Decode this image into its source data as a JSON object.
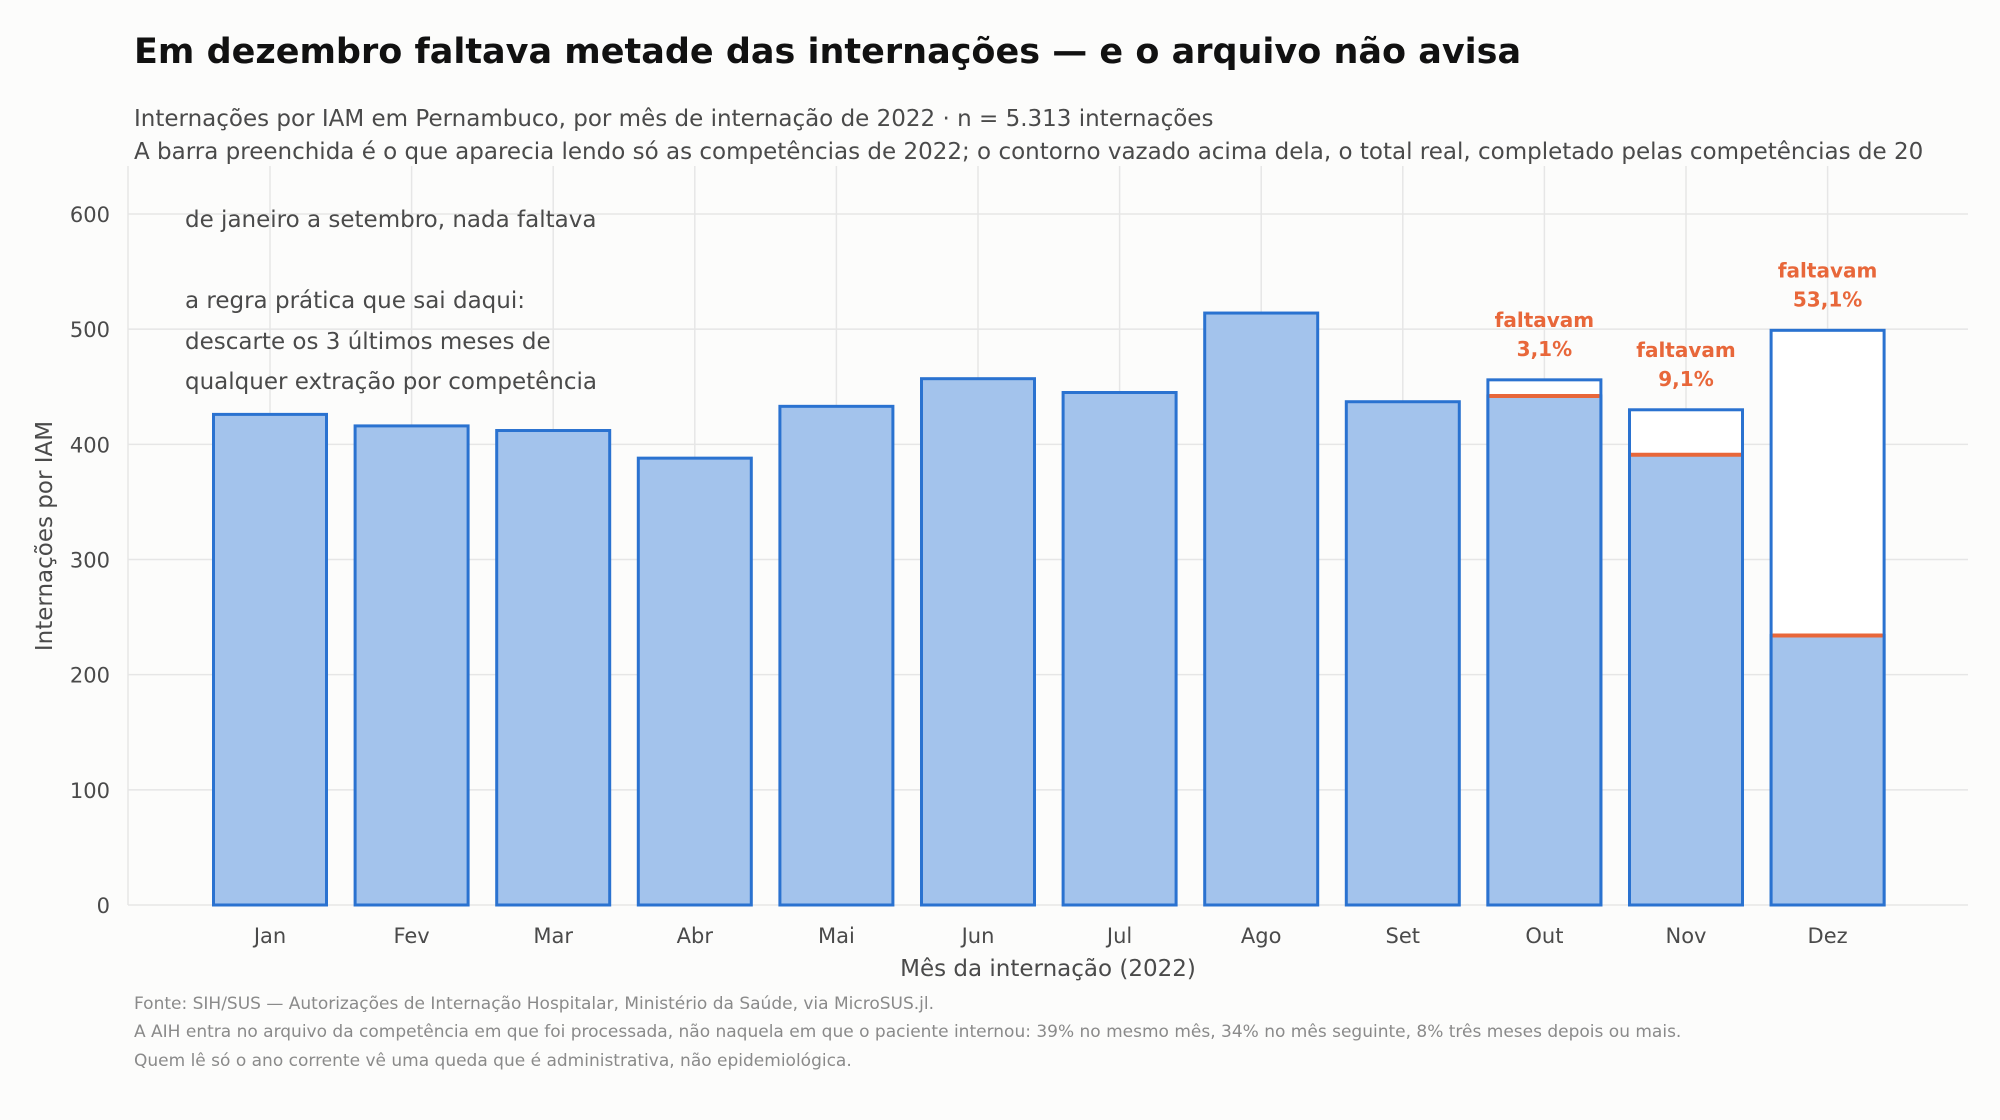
{
  "title": "Em dezembro faltava metade das internações — e o arquivo não avisa",
  "subtitle_lines": [
    "Internações por IAM em Pernambuco, por mês de internação de 2022 · n = 5.313 internações",
    "A barra preenchida é o que aparecia lendo só as competências de 2022; o contorno vazado acima dela, o total real, completado pelas competências de 20"
  ],
  "footnotes": [
    "Fonte: SIH/SUS — Autorizações de Internação Hospitalar, Ministério da Saúde, via MicroSUS.jl.",
    "A AIH entra no arquivo da competência em que foi processada, não naquela em que o paciente internou: 39% no mesmo mês, 34% no mês seguinte, 8% três meses depois ou mais.",
    "Quem lê só o ano corrente vê uma queda que é administrativa, não epidemiológica."
  ],
  "colors": {
    "bar_fill": "#a3c3ec",
    "bar_stroke": "#2a72d0",
    "gap_marker": "#e8673a",
    "grid": "#e6e6e6",
    "text": "#4a4a4a"
  },
  "chart_data": {
    "type": "bar",
    "xlabel": "Mês da internação (2022)",
    "ylabel": "Internações por IAM",
    "ylim": [
      0,
      640
    ],
    "yticks": [
      0,
      100,
      200,
      300,
      400,
      500,
      600
    ],
    "grid": true,
    "categories": [
      "Jan",
      "Fev",
      "Mar",
      "Abr",
      "Mai",
      "Jun",
      "Jul",
      "Ago",
      "Set",
      "Out",
      "Nov",
      "Dez"
    ],
    "series": [
      {
        "values": [
          426,
          416,
          412,
          388,
          433,
          457,
          445,
          514,
          437,
          442,
          391,
          234
        ]
      },
      {
        "values": [
          426,
          416,
          412,
          388,
          433,
          457,
          445,
          514,
          437,
          456,
          430,
          499
        ]
      }
    ],
    "missing_labels": [
      {
        "category": "Out",
        "label": "faltavam",
        "value": "3,1%"
      },
      {
        "category": "Nov",
        "label": "faltavam",
        "value": "9,1%"
      },
      {
        "category": "Dez",
        "label": "faltavam",
        "value": "53,1%"
      }
    ],
    "annotations": {
      "note_1": "de janeiro a setembro, nada faltava",
      "note_2_lines": [
        "a regra prática que sai daqui:",
        "descarte os 3 últimos meses de",
        "qualquer extração por competência"
      ]
    }
  }
}
